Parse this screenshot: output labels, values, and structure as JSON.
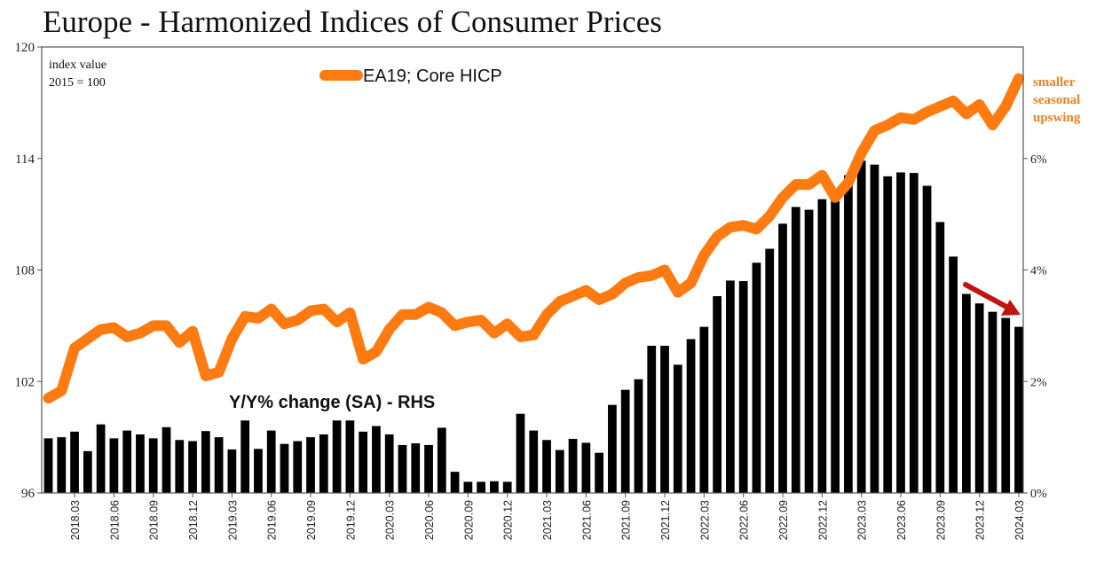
{
  "colors": {
    "line": "#ff7a10",
    "bars": "#000000",
    "arrow": "#c0150f",
    "annotation": "#f08020"
  },
  "chart_data": {
    "type": "bar",
    "title": "Europe - Harmonized Indices of Consumer Prices",
    "left_axis_note_line1": "index value",
    "left_axis_note_line2": "2015 = 100",
    "left_ticks": [
      "96",
      "102",
      "108",
      "114",
      "120"
    ],
    "right_ticks": [
      "0%",
      "2%",
      "4%",
      "6%"
    ],
    "x_tick_labels": [
      "2018.03",
      "2018.06",
      "2018.09",
      "2018.12",
      "2019.03",
      "2019.06",
      "2019.09",
      "2019.12",
      "2020.03",
      "2020.06",
      "2020.09",
      "2020.12",
      "2021.03",
      "2021.06",
      "2021.09",
      "2021.12",
      "2022.03",
      "2022.06",
      "2022.09",
      "2022.12",
      "2023.03",
      "2023.06",
      "2023.09",
      "2023.12",
      "2024.03"
    ],
    "ylim_left": [
      96,
      120
    ],
    "ylim_right": [
      0,
      8
    ],
    "grid": false,
    "categories": [
      "2018.01",
      "2018.02",
      "2018.03",
      "2018.04",
      "2018.05",
      "2018.06",
      "2018.07",
      "2018.08",
      "2018.09",
      "2018.10",
      "2018.11",
      "2018.12",
      "2019.01",
      "2019.02",
      "2019.03",
      "2019.04",
      "2019.05",
      "2019.06",
      "2019.07",
      "2019.08",
      "2019.09",
      "2019.10",
      "2019.11",
      "2019.12",
      "2020.01",
      "2020.02",
      "2020.03",
      "2020.04",
      "2020.05",
      "2020.06",
      "2020.07",
      "2020.08",
      "2020.09",
      "2020.10",
      "2020.11",
      "2020.12",
      "2021.01",
      "2021.02",
      "2021.03",
      "2021.04",
      "2021.05",
      "2021.06",
      "2021.07",
      "2021.08",
      "2021.09",
      "2021.10",
      "2021.11",
      "2021.12",
      "2022.01",
      "2022.02",
      "2022.03",
      "2022.04",
      "2022.05",
      "2022.06",
      "2022.07",
      "2022.08",
      "2022.09",
      "2022.10",
      "2022.11",
      "2022.12",
      "2023.01",
      "2023.02",
      "2023.03",
      "2023.04",
      "2023.05",
      "2023.06",
      "2023.07",
      "2023.08",
      "2023.09",
      "2023.10",
      "2023.11",
      "2023.12",
      "2024.01",
      "2024.02",
      "2024.03"
    ],
    "series": [
      {
        "name": "EA19; Core HICP",
        "axis": "left",
        "kind": "line",
        "values": [
          101.1,
          101.5,
          103.8,
          104.3,
          104.8,
          104.9,
          104.4,
          104.6,
          105.0,
          105.0,
          104.1,
          104.7,
          102.3,
          102.5,
          104.3,
          105.5,
          105.4,
          105.9,
          105.1,
          105.3,
          105.8,
          105.9,
          105.2,
          105.7,
          103.2,
          103.6,
          104.8,
          105.6,
          105.6,
          106.0,
          105.7,
          105.0,
          105.2,
          105.3,
          104.6,
          105.1,
          104.4,
          104.5,
          105.6,
          106.3,
          106.6,
          106.9,
          106.4,
          106.7,
          107.3,
          107.6,
          107.7,
          108.0,
          106.8,
          107.3,
          108.8,
          109.8,
          110.3,
          110.4,
          110.2,
          110.9,
          111.9,
          112.6,
          112.6,
          113.1,
          111.9,
          112.7,
          114.3,
          115.5,
          115.8,
          116.2,
          116.1,
          116.5,
          116.8,
          117.1,
          116.4,
          116.9,
          115.8,
          116.8,
          118.3
        ]
      },
      {
        "name": "Y/Y% change (SA) - RHS",
        "axis": "right",
        "kind": "bar",
        "values": [
          0.98,
          1.0,
          1.1,
          0.75,
          1.23,
          0.98,
          1.12,
          1.05,
          0.98,
          1.18,
          0.95,
          0.93,
          1.11,
          1.0,
          0.78,
          1.3,
          0.79,
          1.12,
          0.88,
          0.93,
          1.0,
          1.05,
          1.3,
          1.3,
          1.1,
          1.2,
          1.05,
          0.86,
          0.89,
          0.86,
          1.17,
          0.38,
          0.2,
          0.2,
          0.21,
          0.2,
          1.42,
          1.12,
          0.95,
          0.77,
          0.97,
          0.9,
          0.72,
          1.58,
          1.85,
          2.04,
          2.64,
          2.64,
          2.3,
          2.76,
          2.98,
          3.53,
          3.81,
          3.8,
          4.13,
          4.38,
          4.83,
          5.13,
          5.08,
          5.27,
          5.42,
          5.7,
          5.96,
          5.89,
          5.68,
          5.75,
          5.74,
          5.51,
          4.86,
          4.24,
          3.57,
          3.4,
          3.25,
          3.14,
          2.98
        ]
      }
    ],
    "annotations": {
      "bar_series_label": "Y/Y% change (SA) - RHS",
      "right_note_line1": "smaller",
      "right_note_line2": "seasonal",
      "right_note_line3": "upswing"
    }
  }
}
